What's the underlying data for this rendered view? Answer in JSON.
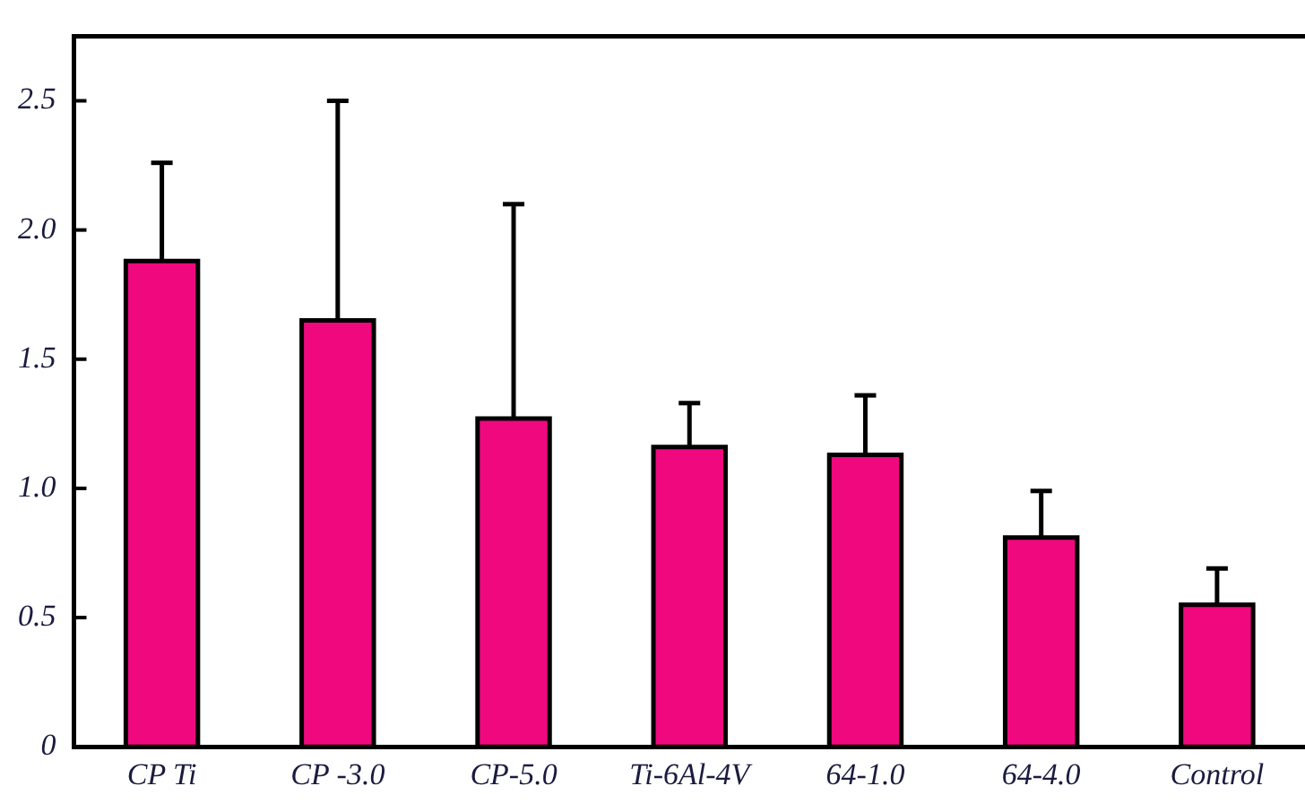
{
  "chart_data": {
    "type": "bar",
    "categories": [
      "CP Ti",
      "CP -3.0",
      "CP-5.0",
      "Ti-6Al-4V",
      "64-1.0",
      "64-4.0",
      "Control"
    ],
    "values": [
      1.88,
      1.65,
      1.27,
      1.16,
      1.13,
      0.81,
      0.55
    ],
    "errors": [
      [
        1.88,
        2.26
      ],
      [
        1.65,
        2.5
      ],
      [
        1.27,
        2.1
      ],
      [
        1.16,
        1.33
      ],
      [
        1.13,
        1.36
      ],
      [
        0.81,
        0.99
      ],
      [
        0.55,
        0.69
      ]
    ],
    "color": "#f0087f",
    "ylim": [
      0,
      2.75
    ],
    "yticks": [
      0,
      {
        "value": 0.5,
        "label": "0.5"
      },
      {
        "value": 1,
        "label": "1.0"
      },
      {
        "value": 1.5,
        "label": "1.5"
      },
      {
        "value": 2,
        "label": "2.0"
      },
      {
        "value": 2.5,
        "label": "2.5"
      }
    ],
    "grid": false,
    "legend": false
  }
}
